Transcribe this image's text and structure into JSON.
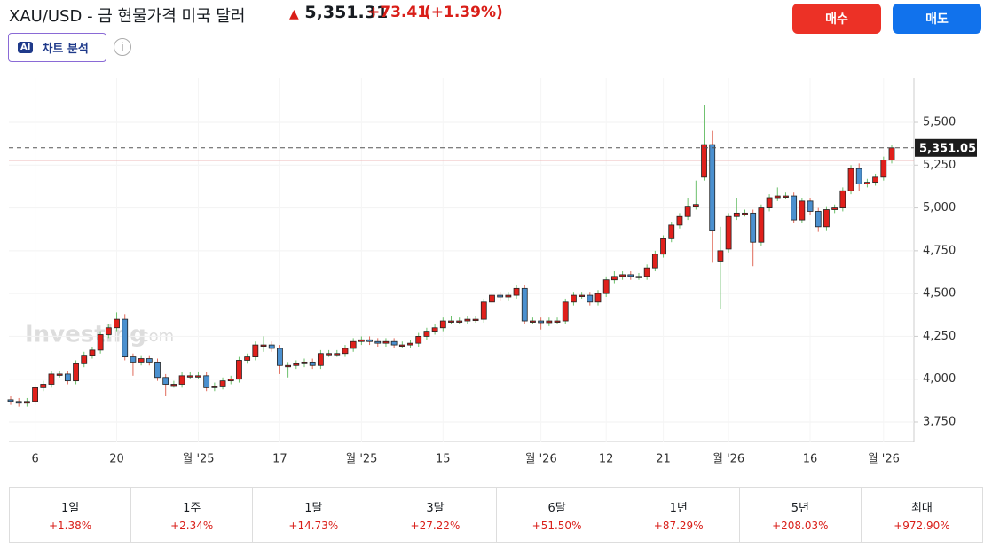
{
  "header": {
    "title": "XAU/USD - 금 현물가격 미국 달러",
    "price": "5,351.31",
    "change": "+73.41",
    "change_pct": "(+1.39%)",
    "buy": "매수",
    "sell": "매도",
    "ai_badge": "AI",
    "ai_label": "차트 분석",
    "info": "i"
  },
  "watermark": {
    "brand": "Investing",
    "suffix": ".com"
  },
  "chart_data": {
    "type": "candlestick",
    "categories": [
      null,
      null,
      null,
      "6",
      null,
      null,
      null,
      null,
      null,
      null,
      null,
      null,
      null,
      "20",
      null,
      null,
      null,
      null,
      null,
      null,
      null,
      null,
      null,
      "월 '25",
      null,
      null,
      null,
      null,
      null,
      null,
      null,
      null,
      null,
      "17",
      null,
      null,
      null,
      null,
      null,
      null,
      null,
      null,
      null,
      "월 '25",
      null,
      null,
      null,
      null,
      null,
      null,
      null,
      null,
      null,
      "15",
      null,
      null,
      null,
      null,
      null,
      null,
      null,
      null,
      null,
      null,
      null,
      "월 '26",
      null,
      null,
      null,
      null,
      null,
      null,
      null,
      "12",
      null,
      null,
      null,
      null,
      null,
      null,
      "21",
      null,
      null,
      null,
      null,
      null,
      null,
      null,
      "월 '26",
      null,
      null,
      null,
      null,
      null,
      null,
      null,
      null,
      null,
      "16",
      null,
      null,
      null,
      null,
      null,
      null,
      null,
      null,
      "월 '26",
      null
    ],
    "open": [
      3880,
      3870,
      3860,
      3870,
      3950,
      3970,
      4030,
      4030,
      3990,
      4090,
      4140,
      4170,
      4260,
      4300,
      4350,
      4130,
      4100,
      4120,
      4100,
      4010,
      3970,
      3970,
      4020,
      4020,
      4020,
      3950,
      3960,
      3990,
      4000,
      4110,
      4130,
      4200,
      4200,
      4180,
      4080,
      4080,
      4090,
      4100,
      4080,
      4150,
      4150,
      4150,
      4180,
      4220,
      4230,
      4220,
      4210,
      4220,
      4200,
      4200,
      4210,
      4250,
      4280,
      4300,
      4340,
      4340,
      4340,
      4350,
      4350,
      4450,
      4490,
      4480,
      4490,
      4530,
      4340,
      4340,
      4330,
      4340,
      4340,
      4450,
      4490,
      4490,
      4450,
      4500,
      4580,
      4600,
      4610,
      4600,
      4600,
      4650,
      4730,
      4820,
      4900,
      4950,
      5010,
      5180,
      5370,
      4690,
      4760,
      4950,
      4970,
      4970,
      4800,
      5000,
      5060,
      5070,
      5070,
      4930,
      5040,
      4980,
      4890,
      4990,
      5000,
      5100,
      5230,
      5140,
      5150,
      5180,
      5280
    ],
    "high": [
      3900,
      3890,
      3890,
      3970,
      3990,
      4050,
      4050,
      4050,
      4110,
      4160,
      4190,
      4280,
      4320,
      4390,
      4380,
      4150,
      4140,
      4140,
      4120,
      4030,
      3990,
      4040,
      4040,
      4040,
      4040,
      3980,
      4010,
      4020,
      4130,
      4150,
      4220,
      4250,
      4220,
      4200,
      4100,
      4110,
      4120,
      4120,
      4170,
      4170,
      4170,
      4200,
      4240,
      4250,
      4250,
      4240,
      4240,
      4240,
      4220,
      4230,
      4270,
      4300,
      4320,
      4360,
      4370,
      4360,
      4370,
      4370,
      4470,
      4510,
      4510,
      4510,
      4550,
      4550,
      4360,
      4360,
      4360,
      4360,
      4470,
      4510,
      4510,
      4510,
      4520,
      4600,
      4630,
      4630,
      4630,
      4620,
      4670,
      4750,
      4840,
      4920,
      4970,
      5060,
      5160,
      5600,
      5450,
      4890,
      4970,
      5060,
      4990,
      4990,
      5020,
      5080,
      5120,
      5090,
      5090,
      5060,
      5060,
      5000,
      5010,
      5020,
      5120,
      5250,
      5260,
      5170,
      5200,
      5300,
      5370
    ],
    "low": [
      3850,
      3840,
      3840,
      3850,
      3930,
      3950,
      4010,
      3970,
      3970,
      4070,
      4120,
      4150,
      4240,
      4280,
      4110,
      4020,
      4080,
      4080,
      3990,
      3900,
      3950,
      3950,
      4000,
      4000,
      3930,
      3930,
      3940,
      3970,
      3980,
      4090,
      4110,
      4160,
      4160,
      4030,
      4010,
      4060,
      4070,
      4060,
      4060,
      4130,
      4130,
      4130,
      4160,
      4200,
      4200,
      4190,
      4190,
      4180,
      4180,
      4180,
      4190,
      4230,
      4260,
      4280,
      4320,
      4320,
      4320,
      4330,
      4330,
      4430,
      4460,
      4460,
      4470,
      4320,
      4320,
      4290,
      4310,
      4320,
      4320,
      4430,
      4470,
      4430,
      4430,
      4480,
      4560,
      4580,
      4580,
      4580,
      4580,
      4630,
      4710,
      4800,
      4880,
      4930,
      4990,
      5160,
      4680,
      4410,
      4740,
      4930,
      4950,
      4660,
      4780,
      4980,
      5040,
      5050,
      4910,
      4910,
      4960,
      4860,
      4870,
      4970,
      4980,
      5080,
      5100,
      5120,
      5130,
      5160,
      5260
    ],
    "close": [
      3870,
      3860,
      3870,
      3950,
      3970,
      4030,
      4030,
      3990,
      4090,
      4140,
      4170,
      4260,
      4300,
      4350,
      4130,
      4100,
      4120,
      4100,
      4010,
      3970,
      3970,
      4020,
      4020,
      4020,
      3950,
      3960,
      3990,
      4000,
      4110,
      4130,
      4200,
      4200,
      4180,
      4080,
      4080,
      4090,
      4100,
      4080,
      4150,
      4150,
      4150,
      4180,
      4220,
      4230,
      4220,
      4210,
      4220,
      4200,
      4200,
      4210,
      4250,
      4280,
      4300,
      4340,
      4340,
      4340,
      4350,
      4350,
      4450,
      4490,
      4480,
      4490,
      4530,
      4340,
      4340,
      4330,
      4340,
      4340,
      4450,
      4490,
      4490,
      4450,
      4500,
      4580,
      4600,
      4610,
      4600,
      4600,
      4650,
      4730,
      4820,
      4900,
      4950,
      5010,
      5020,
      5370,
      4870,
      4750,
      4950,
      4970,
      4970,
      4800,
      5000,
      5060,
      5070,
      5070,
      4930,
      5040,
      4980,
      4890,
      4990,
      5000,
      5100,
      5230,
      5140,
      5150,
      5180,
      5280,
      5351.05
    ],
    "last_label": "5,351.05",
    "prev_close": 5277.9,
    "up_color": "#e0201b",
    "down_color": "#4b90cf",
    "up_wick": "#6cc06c",
    "down_wick": "#e06a5a",
    "ylim": [
      3636,
      5759
    ],
    "yticks": [
      {
        "value": 3750,
        "label": "3,750"
      },
      {
        "value": 4000,
        "label": "4,000"
      },
      {
        "value": 4250,
        "label": "4,250"
      },
      {
        "value": 4500,
        "label": "4,500"
      },
      {
        "value": 4750,
        "label": "4,750"
      },
      {
        "value": 5000,
        "label": "5,000"
      },
      {
        "value": 5250,
        "label": "5,250"
      },
      {
        "value": 5500,
        "label": "5,500"
      }
    ],
    "grid": true
  },
  "performance": [
    {
      "period": "1일",
      "value": "+1.38%"
    },
    {
      "period": "1주",
      "value": "+2.34%"
    },
    {
      "period": "1달",
      "value": "+14.73%"
    },
    {
      "period": "3달",
      "value": "+27.22%"
    },
    {
      "period": "6달",
      "value": "+51.50%"
    },
    {
      "period": "1년",
      "value": "+87.29%"
    },
    {
      "period": "5년",
      "value": "+208.03%"
    },
    {
      "period": "최대",
      "value": "+972.90%"
    }
  ]
}
